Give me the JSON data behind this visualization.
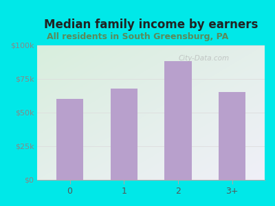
{
  "title": "Median family income by earners",
  "subtitle": "All residents in South Greensburg, PA",
  "categories": [
    "0",
    "1",
    "2",
    "3+"
  ],
  "values": [
    60000,
    68000,
    88000,
    65000
  ],
  "bar_color": "#b8a0cc",
  "title_fontsize": 12,
  "subtitle_fontsize": 9,
  "subtitle_color": "#5a8a5a",
  "title_color": "#222222",
  "background_outer": "#00e8e8",
  "background_inner_topleft": "#d8eedd",
  "background_inner_bottomright": "#f0f0f8",
  "ylim": [
    0,
    100000
  ],
  "yticks": [
    0,
    25000,
    50000,
    75000,
    100000
  ],
  "ytick_labels": [
    "$0",
    "$25k",
    "$50k",
    "$75k",
    "$100k"
  ],
  "watermark": "City-Data.com",
  "xlabel_color": "#555555",
  "ylabel_color": "#888888",
  "grid_color": "#dddddd"
}
